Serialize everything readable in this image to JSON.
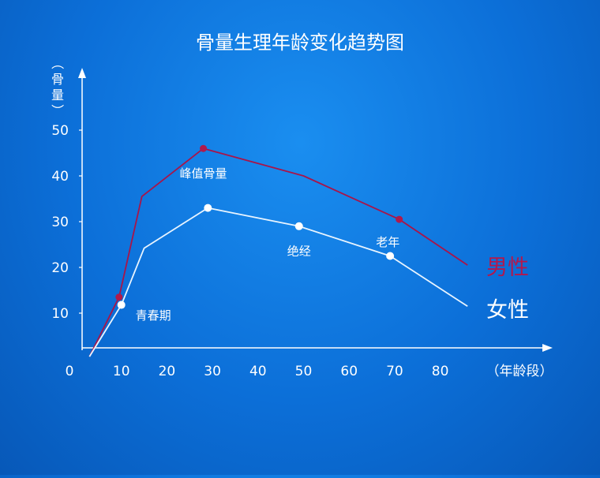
{
  "chart_data": {
    "type": "line",
    "title": "骨量生理年龄变化趋势图",
    "ylabel": "（骨量）",
    "ylabel_chars": [
      "（",
      "骨",
      "量",
      "）"
    ],
    "xlabel": "（年龄段）",
    "origin_label": "0",
    "xlim": [
      0,
      100
    ],
    "ylim": [
      0,
      60
    ],
    "x_ticks": [
      10,
      20,
      30,
      40,
      50,
      60,
      70,
      80
    ],
    "y_ticks": [
      10,
      20,
      30,
      40,
      50
    ],
    "series": [
      {
        "name": "男性",
        "color": "#a8154a",
        "x": [
          3,
          9.5,
          14.5,
          28,
          50,
          71,
          86
        ],
        "y": [
          0.5,
          13.5,
          35.5,
          46,
          40,
          30.5,
          20.5
        ],
        "markers": [
          1,
          3,
          5
        ],
        "marker_color": "#b01a4c"
      },
      {
        "name": "女性",
        "color": "#e8f4ff",
        "x": [
          3,
          10,
          15,
          29,
          49,
          69,
          86
        ],
        "y": [
          0.5,
          11.8,
          24.2,
          33,
          29,
          22.5,
          11.5
        ],
        "markers": [
          1,
          3,
          4,
          5
        ],
        "marker_color": "#ffffff"
      }
    ],
    "annotations": [
      {
        "text": "峰值骨量",
        "x": 28,
        "y": 40.5
      },
      {
        "text": "青春期",
        "x": 17,
        "y": 9.5
      },
      {
        "text": "绝经",
        "x": 49,
        "y": 23.5
      },
      {
        "text": "老年",
        "x": 68.5,
        "y": 25.5
      }
    ],
    "grid": false,
    "legend": "right, inline labels next to line ends"
  }
}
